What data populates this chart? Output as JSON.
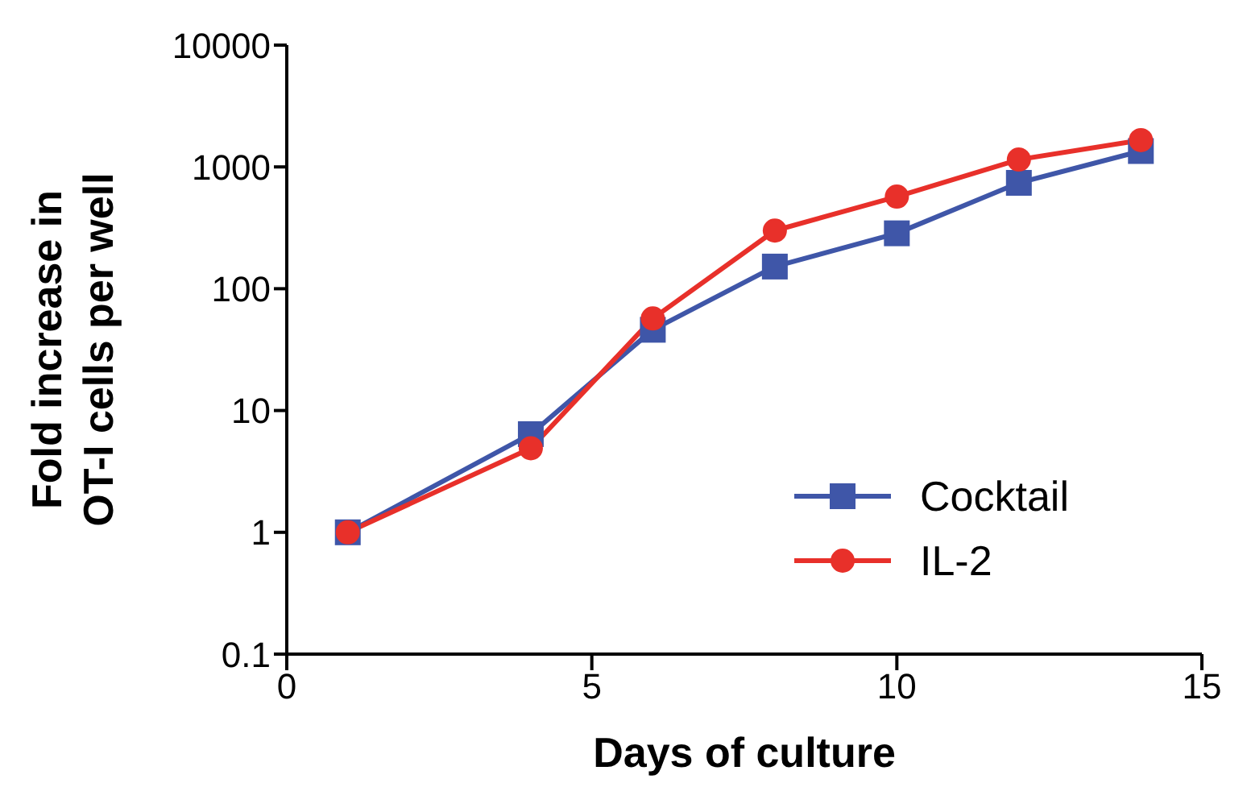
{
  "chart_data": {
    "type": "line",
    "xlabel": "Days of culture",
    "ylabel": "Fold increase in OT-I cells per well",
    "x": [
      1,
      4,
      6,
      8,
      10,
      12,
      14
    ],
    "series": [
      {
        "name": "Cocktail",
        "color": "#3f56a8",
        "marker": "square",
        "values": [
          1,
          6.4,
          46,
          152,
          285,
          740,
          1350
        ]
      },
      {
        "name": "IL-2",
        "color": "#e8302a",
        "marker": "circle",
        "values": [
          1,
          4.9,
          57,
          300,
          570,
          1150,
          1660
        ]
      }
    ],
    "log": "y",
    "xlim": [
      0,
      15
    ],
    "xticks": [
      0,
      5,
      10,
      15
    ],
    "ylim": [
      0.1,
      10000
    ],
    "yticks": [
      0.1,
      1,
      10,
      100,
      1000,
      10000
    ],
    "grid": false,
    "legend": "bottom right",
    "line_style": "solid"
  }
}
